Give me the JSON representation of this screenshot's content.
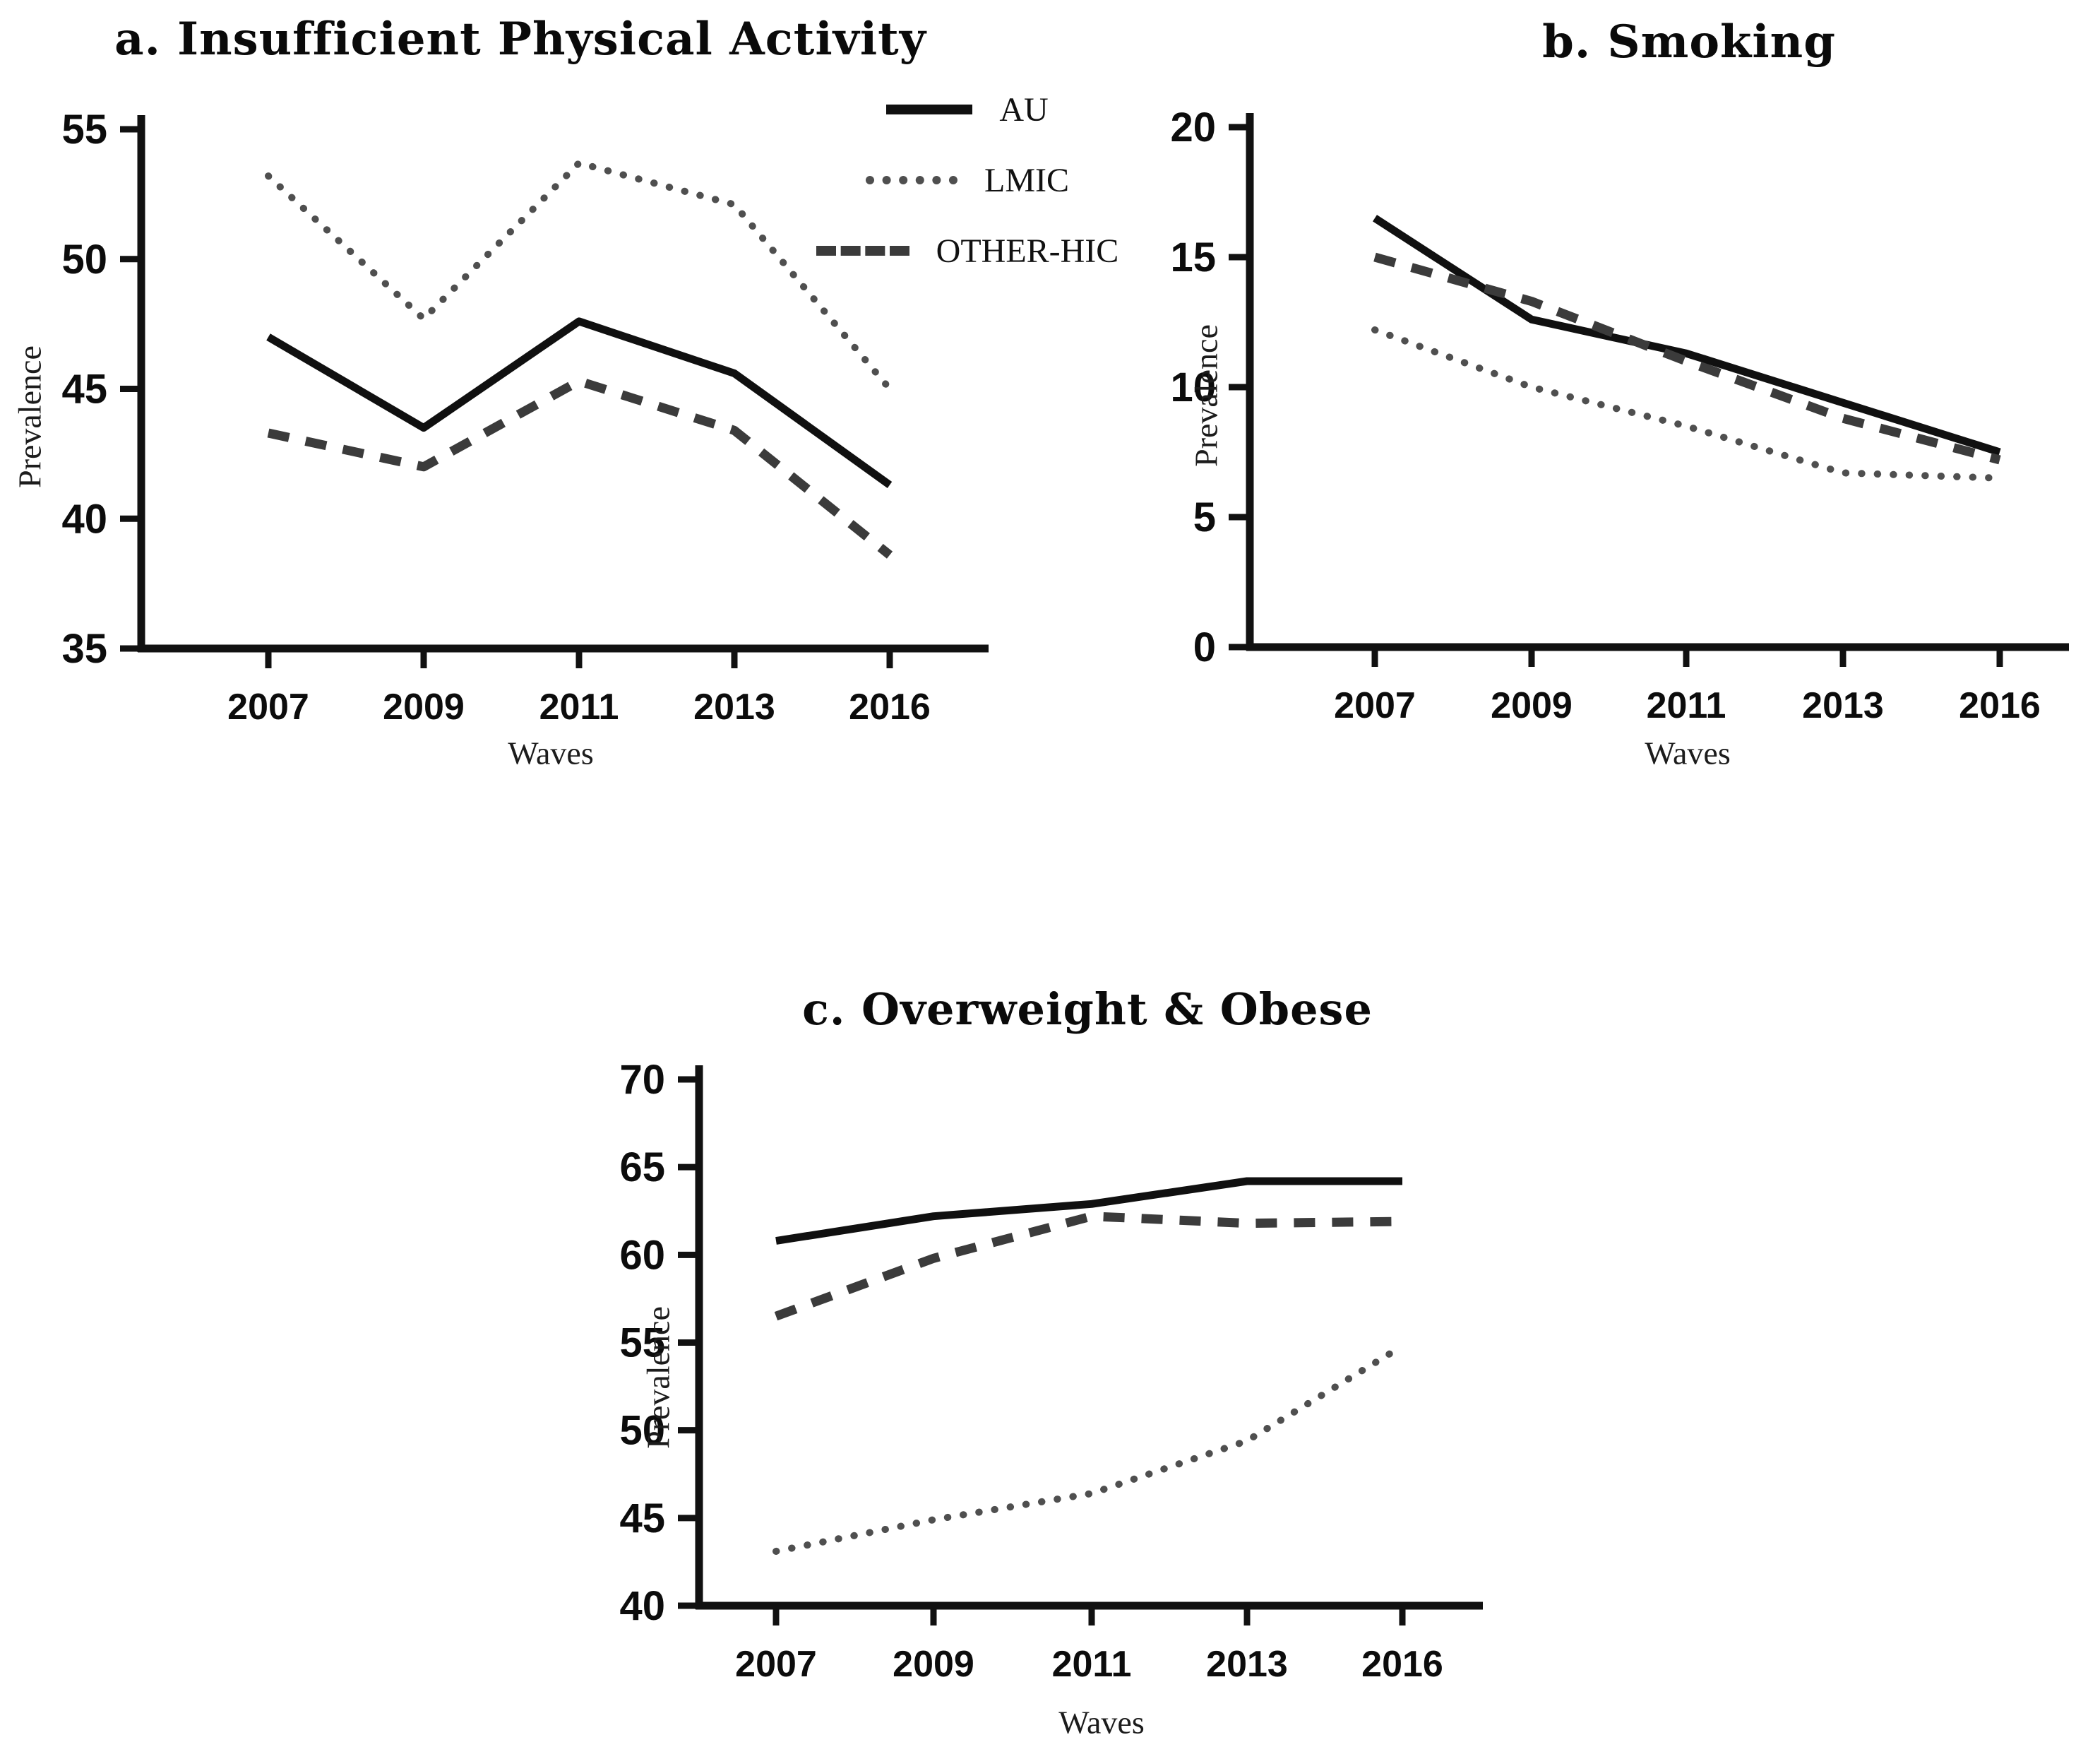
{
  "colors": {
    "solid": "#101010",
    "dotted": "#4f4f4f",
    "dashed": "#3b3b3b",
    "axis": "#111111"
  },
  "legend": {
    "items": [
      {
        "label": "AU",
        "style": "solid"
      },
      {
        "label": "LMIC",
        "style": "dotted"
      },
      {
        "label": "OTHER-HIC",
        "style": "dashed"
      }
    ]
  },
  "chart_data": [
    {
      "id": "a",
      "type": "line",
      "title": "a. Insufficient Physical Activity",
      "xlabel": "Waves",
      "ylabel": "Prevalence",
      "categories": [
        "2007",
        "2009",
        "2011",
        "2013",
        "2016"
      ],
      "ylim": [
        35,
        55
      ],
      "ytick_step": 5,
      "grid": false,
      "legend_position": "right-of-plot",
      "series": [
        {
          "name": "AU",
          "style": "solid",
          "values": [
            47.0,
            43.5,
            47.6,
            45.6,
            41.3
          ]
        },
        {
          "name": "LMIC",
          "style": "dotted",
          "values": [
            53.2,
            47.7,
            53.7,
            52.1,
            45.0
          ]
        },
        {
          "name": "OTHER-HIC",
          "style": "dashed",
          "values": [
            43.3,
            42.0,
            45.3,
            43.4,
            38.6
          ]
        }
      ]
    },
    {
      "id": "b",
      "type": "line",
      "title": "b. Smoking",
      "xlabel": "Waves",
      "ylabel": "Prevalence",
      "categories": [
        "2007",
        "2009",
        "2011",
        "2013",
        "2016"
      ],
      "ylim": [
        0,
        20
      ],
      "ytick_step": 5,
      "grid": false,
      "series": [
        {
          "name": "AU",
          "style": "solid",
          "values": [
            16.5,
            12.6,
            11.3,
            9.4,
            7.5
          ]
        },
        {
          "name": "LMIC",
          "style": "dotted",
          "values": [
            12.2,
            10.0,
            8.5,
            6.7,
            6.5
          ]
        },
        {
          "name": "OTHER-HIC",
          "style": "dashed",
          "values": [
            15.0,
            13.3,
            11.0,
            8.8,
            7.2
          ]
        }
      ]
    },
    {
      "id": "c",
      "type": "line",
      "title": "c. Overweight & Obese",
      "xlabel": "Waves",
      "ylabel": "Prevalence",
      "categories": [
        "2007",
        "2009",
        "2011",
        "2013",
        "2016"
      ],
      "ylim": [
        40,
        70
      ],
      "ytick_step": 5,
      "grid": false,
      "series": [
        {
          "name": "AU",
          "style": "solid",
          "values": [
            60.8,
            62.2,
            62.9,
            64.2,
            64.2
          ]
        },
        {
          "name": "LMIC",
          "style": "dotted",
          "values": [
            43.1,
            44.9,
            46.4,
            49.4,
            54.8
          ]
        },
        {
          "name": "OTHER-HIC",
          "style": "dashed",
          "values": [
            56.5,
            59.8,
            62.2,
            61.8,
            61.9
          ]
        }
      ]
    }
  ]
}
